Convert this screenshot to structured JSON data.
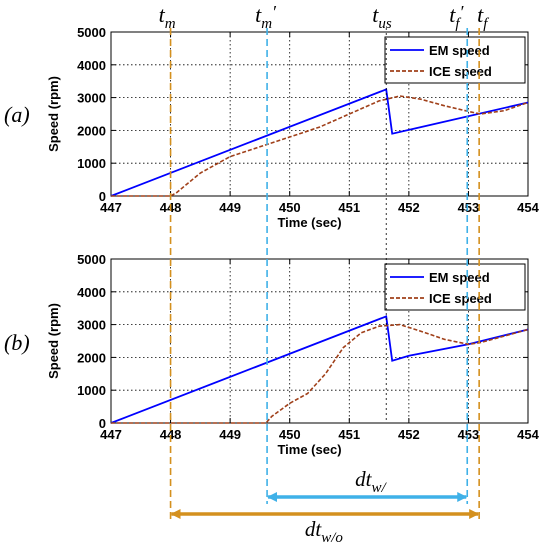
{
  "chart_data": [
    {
      "panel": "(a)",
      "type": "line",
      "xlabel": "Time (sec)",
      "ylabel": "Speed (rpm)",
      "xlim": [
        447,
        454
      ],
      "ylim": [
        0,
        5000
      ],
      "xticks": [
        447,
        448,
        449,
        450,
        451,
        452,
        453,
        454
      ],
      "yticks": [
        0,
        1000,
        2000,
        3000,
        4000,
        5000
      ],
      "grid": true,
      "legend_position": "top-right",
      "series": [
        {
          "name": "EM speed",
          "color": "#0000ff",
          "style": "solid",
          "points": [
            [
              447.0,
              0
            ],
            [
              451.62,
              3250
            ],
            [
              451.72,
              1900
            ],
            [
              454.0,
              2850
            ]
          ]
        },
        {
          "name": "ICE speed",
          "color": "#a0401a",
          "style": "dashed",
          "points": [
            [
              447.0,
              0
            ],
            [
              448.0,
              0
            ],
            [
              448.1,
              100
            ],
            [
              448.5,
              700
            ],
            [
              449.0,
              1200
            ],
            [
              449.5,
              1500
            ],
            [
              450.0,
              1800
            ],
            [
              450.5,
              2100
            ],
            [
              451.0,
              2500
            ],
            [
              451.5,
              2900
            ],
            [
              451.85,
              3050
            ],
            [
              452.2,
              2950
            ],
            [
              452.6,
              2750
            ],
            [
              453.0,
              2580
            ],
            [
              453.2,
              2500
            ],
            [
              453.6,
              2600
            ],
            [
              454.0,
              2850
            ]
          ]
        }
      ]
    },
    {
      "panel": "(b)",
      "type": "line",
      "xlabel": "Time (sec)",
      "ylabel": "Speed (rpm)",
      "xlim": [
        447,
        454
      ],
      "ylim": [
        0,
        5000
      ],
      "xticks": [
        447,
        448,
        449,
        450,
        451,
        452,
        453,
        454
      ],
      "yticks": [
        0,
        1000,
        2000,
        3000,
        4000,
        5000
      ],
      "grid": true,
      "legend_position": "top-right",
      "series": [
        {
          "name": "EM speed",
          "color": "#0000ff",
          "style": "solid",
          "points": [
            [
              447.0,
              0
            ],
            [
              451.62,
              3250
            ],
            [
              451.72,
              1900
            ],
            [
              452.0,
              2050
            ],
            [
              453.0,
              2400
            ],
            [
              454.0,
              2850
            ]
          ]
        },
        {
          "name": "ICE speed",
          "color": "#a0401a",
          "style": "dashed",
          "points": [
            [
              447.0,
              0
            ],
            [
              449.6,
              0
            ],
            [
              449.7,
              200
            ],
            [
              450.0,
              600
            ],
            [
              450.3,
              900
            ],
            [
              450.6,
              1500
            ],
            [
              450.9,
              2300
            ],
            [
              451.2,
              2750
            ],
            [
              451.5,
              2950
            ],
            [
              451.85,
              3000
            ],
            [
              452.2,
              2800
            ],
            [
              452.6,
              2550
            ],
            [
              453.0,
              2400
            ],
            [
              453.2,
              2450
            ],
            [
              453.6,
              2650
            ],
            [
              454.0,
              2850
            ]
          ]
        }
      ]
    }
  ],
  "markers": [
    {
      "base": "t",
      "sub": "m",
      "prime": false,
      "x": 448.0,
      "color": "#d4901e"
    },
    {
      "base": "t",
      "sub": "m",
      "prime": true,
      "x": 449.62,
      "color": "#3fb1e8"
    },
    {
      "base": "t",
      "sub": "us",
      "prime": false,
      "x": 451.62,
      "color": "#000000"
    },
    {
      "base": "t",
      "sub": "f",
      "prime": true,
      "x": 452.98,
      "color": "#3fb1e8"
    },
    {
      "base": "t",
      "sub": "f",
      "prime": false,
      "x": 453.18,
      "color": "#d4901e"
    }
  ],
  "intervals": [
    {
      "base": "dt",
      "sub": "w/",
      "from": 449.62,
      "to": 452.98,
      "color": "#3fb1e8"
    },
    {
      "base": "dt",
      "sub": "w/o",
      "from": 448.0,
      "to": 453.18,
      "color": "#d4901e"
    }
  ]
}
